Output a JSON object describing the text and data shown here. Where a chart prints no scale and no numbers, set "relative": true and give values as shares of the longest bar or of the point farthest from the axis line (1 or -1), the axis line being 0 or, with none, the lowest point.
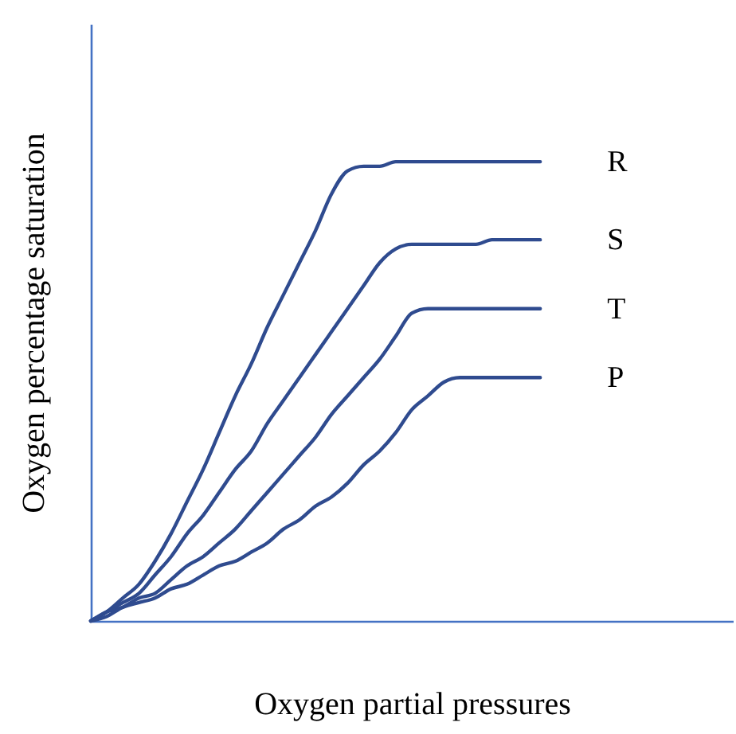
{
  "chart_data": {
    "type": "line",
    "relative": true,
    "xlabel": "Oxygen partial pressures",
    "ylabel": "Oxygen percentage saturation",
    "grid": false,
    "categories": [
      null,
      null,
      null,
      null,
      null,
      null,
      null,
      null,
      null,
      null,
      null,
      null,
      null,
      null,
      null,
      null,
      null,
      null,
      null,
      null,
      null,
      null,
      null,
      null,
      null,
      null,
      null,
      null,
      null,
      null,
      null,
      null,
      null,
      null,
      null,
      null,
      null,
      null,
      null,
      null,
      null
    ],
    "series": [
      {
        "name": "R",
        "color": "#2f4b8f",
        "values": [
          0,
          0.02,
          0.05,
          0.08,
          0.13,
          0.19,
          0.26,
          0.33,
          0.41,
          0.49,
          0.56,
          0.64,
          0.71,
          0.78,
          0.85,
          0.93,
          0.98,
          0.99,
          0.99,
          1,
          1,
          1,
          1,
          1,
          1,
          1,
          1,
          1,
          1,
          null,
          null,
          null,
          null,
          null,
          null,
          null,
          null,
          null,
          null,
          null,
          null
        ]
      },
      {
        "name": "S",
        "color": "#2f4b8f",
        "values": [
          0,
          0.02,
          0.04,
          0.06,
          0.1,
          0.14,
          0.19,
          0.23,
          0.28,
          0.33,
          0.37,
          0.43,
          0.48,
          0.53,
          0.58,
          0.63,
          0.68,
          0.73,
          0.78,
          0.81,
          0.82,
          0.82,
          0.82,
          0.82,
          0.82,
          0.83,
          0.83,
          0.83,
          0.83,
          null,
          null,
          null,
          null,
          null,
          null,
          null,
          null,
          null,
          null,
          null,
          null
        ]
      },
      {
        "name": "T",
        "color": "#2f4b8f",
        "values": [
          0,
          0.02,
          0.03,
          0.05,
          0.06,
          0.09,
          0.12,
          0.14,
          0.17,
          0.2,
          0.24,
          0.28,
          0.32,
          0.36,
          0.4,
          0.45,
          0.49,
          0.53,
          0.57,
          0.62,
          0.67,
          0.68,
          0.68,
          0.68,
          0.68,
          0.68,
          0.68,
          0.68,
          0.68,
          null,
          null,
          null,
          null,
          null,
          null,
          null,
          null,
          null,
          null,
          null,
          null
        ]
      },
      {
        "name": "P",
        "color": "#2f4b8f",
        "values": [
          0,
          0.01,
          0.03,
          0.04,
          0.05,
          0.07,
          0.08,
          0.1,
          0.12,
          0.13,
          0.15,
          0.17,
          0.2,
          0.22,
          0.25,
          0.27,
          0.3,
          0.34,
          0.37,
          0.41,
          0.46,
          0.49,
          0.52,
          0.53,
          0.53,
          0.53,
          0.53,
          0.53,
          0.53,
          null,
          null,
          null,
          null,
          null,
          null,
          null,
          null,
          null,
          null,
          null,
          null
        ]
      }
    ]
  }
}
